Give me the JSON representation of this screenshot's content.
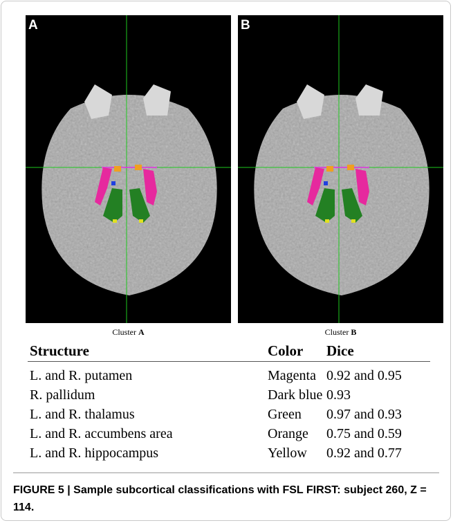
{
  "panels": [
    {
      "label": "A",
      "caption": "Cluster",
      "caption_letter": "A"
    },
    {
      "label": "B",
      "caption": "Cluster",
      "caption_letter": "B"
    }
  ],
  "table": {
    "header": [
      "Structure",
      "Color",
      "Dice"
    ],
    "rows": [
      [
        "L. and R. putamen",
        "Magenta",
        "0.92 and 0.95"
      ],
      [
        "R. pallidum",
        "Dark blue",
        "0.93"
      ],
      [
        "L. and R. thalamus",
        "Green",
        "0.97 and 0.93"
      ],
      [
        "L. and R. accumbens area",
        "Orange",
        "0.75 and 0.59"
      ],
      [
        "L. and R. hippocampus",
        "Yellow",
        "0.92 and 0.77"
      ]
    ]
  },
  "caption": "FIGURE 5 | Sample subcortical classifications with FSL FIRST: subject 260, Z = 114."
}
